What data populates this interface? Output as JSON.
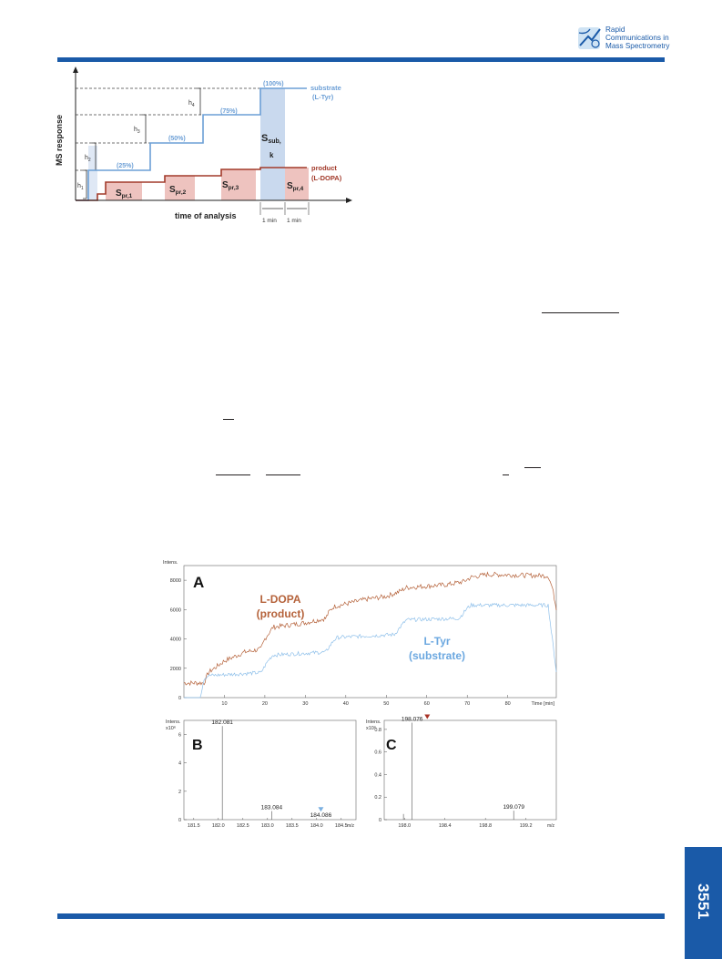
{
  "journal": {
    "name_lines": [
      "Rapid",
      "Communications in",
      "Mass Spectrometry"
    ]
  },
  "page_number": "3551",
  "colors": {
    "brand": "#1a5aa8",
    "substrate": "#6c9fd6",
    "product": "#a23a2a",
    "product_fill": "#eec3bf",
    "substrate_fill": "#c9d9ee",
    "ldopa_trace": "#b5623a",
    "ltyr_trace": "#8fc0ea",
    "marker_blue": "#7aafe0",
    "marker_red": "#a83226"
  },
  "scheme": {
    "y_axis_label": "MS response",
    "x_axis_label": "time of analysis",
    "substrate_label": [
      "substrate",
      "(L-Tyr)"
    ],
    "product_label": [
      "product",
      "(L-DOPA)"
    ],
    "steps": [
      "(25%)",
      "(50%)",
      "(75%)",
      "(100%)"
    ],
    "heights": [
      "h",
      "h",
      "h",
      "h"
    ],
    "height_subs": [
      "1",
      "2",
      "3",
      "4"
    ],
    "s_sub": [
      "S",
      "sub,",
      "k"
    ],
    "s_pr": [
      [
        "S",
        "pr,1"
      ],
      [
        "S",
        "pr,2"
      ],
      [
        "S",
        "pr,3"
      ],
      [
        "S",
        "pr,4"
      ]
    ],
    "interval_labels": [
      "1 min",
      "1 min"
    ]
  },
  "figure": {
    "panels": [
      "A",
      "B",
      "C"
    ],
    "intens_label": "Intens.",
    "chart_data": [
      {
        "panel": "A",
        "type": "line",
        "xlabel": "Time [min]",
        "ylabel": "Intens.",
        "ylim": [
          0,
          9000
        ],
        "xlim": [
          0,
          92
        ],
        "x_ticks": [
          "10",
          "20",
          "30",
          "40",
          "50",
          "60",
          "70",
          "80",
          "Time [min]"
        ],
        "y_ticks": [
          "0",
          "2000",
          "4000",
          "6000",
          "8000"
        ],
        "series": [
          {
            "name": "L-DOPA (product)",
            "label_lines": [
              "L-DOPA",
              "(product)"
            ],
            "color": "#b5623a",
            "x": [
              0,
              5,
              6,
              10,
              15,
              19,
              20,
              22,
              30,
              35,
              36,
              37,
              45,
              50,
              53,
              55,
              65,
              69,
              71,
              75,
              90,
              91,
              92
            ],
            "y": [
              1000,
              1000,
              1700,
              2500,
              3100,
              3300,
              4000,
              4800,
              5100,
              5400,
              5900,
              6200,
              6700,
              6900,
              7200,
              7500,
              7700,
              7900,
              8200,
              8400,
              8300,
              7500,
              6100
            ]
          },
          {
            "name": "L-Tyr (substrate)",
            "label_lines": [
              "L-Tyr",
              "(substrate)"
            ],
            "color": "#8fc0ea",
            "x": [
              0,
              4,
              5,
              6,
              19,
              21,
              22,
              35,
              37,
              38,
              52,
              54,
              55,
              68,
              70,
              71,
              90,
              91,
              92
            ],
            "y": [
              0,
              0,
              1300,
              1500,
              1700,
              2600,
              2900,
              3100,
              3900,
              4100,
              4300,
              5000,
              5300,
              5400,
              6100,
              6300,
              6300,
              4000,
              1800
            ]
          }
        ]
      },
      {
        "panel": "B",
        "type": "bar",
        "xlabel": "m/z",
        "ylabel": "Intens. x10⁶",
        "intens_exp": "x10⁶",
        "xlim": [
          181.3,
          184.8
        ],
        "ylim": [
          0,
          7
        ],
        "x_ticks": [
          "181.5",
          "182.0",
          "182.5",
          "183.0",
          "183.5",
          "184.0",
          "184.5",
          "m/z"
        ],
        "y_ticks": [
          "0",
          "2",
          "4",
          "6"
        ],
        "peaks_mz": [
          182.081,
          183.084,
          184.086
        ],
        "peaks_intensity": [
          6.6,
          0.6,
          0.05
        ],
        "peak_labels": [
          "182.081",
          "183.084",
          "184.086"
        ]
      },
      {
        "panel": "C",
        "type": "bar",
        "xlabel": "m/z",
        "ylabel": "Intens. x10⁶",
        "intens_exp": "x10⁶",
        "xlim": [
          197.8,
          199.5
        ],
        "ylim": [
          0,
          0.88
        ],
        "x_ticks": [
          "198.0",
          "198.4",
          "198.8",
          "199.2",
          "m/z"
        ],
        "y_ticks": [
          "0",
          "0.2",
          "0.4",
          "0.6",
          "0.8"
        ],
        "peaks_mz": [
          197.99,
          198.076,
          199.079
        ],
        "peaks_intensity": [
          0.05,
          0.86,
          0.08
        ],
        "peak_labels": [
          "",
          "198.076",
          "199.079"
        ]
      }
    ]
  }
}
